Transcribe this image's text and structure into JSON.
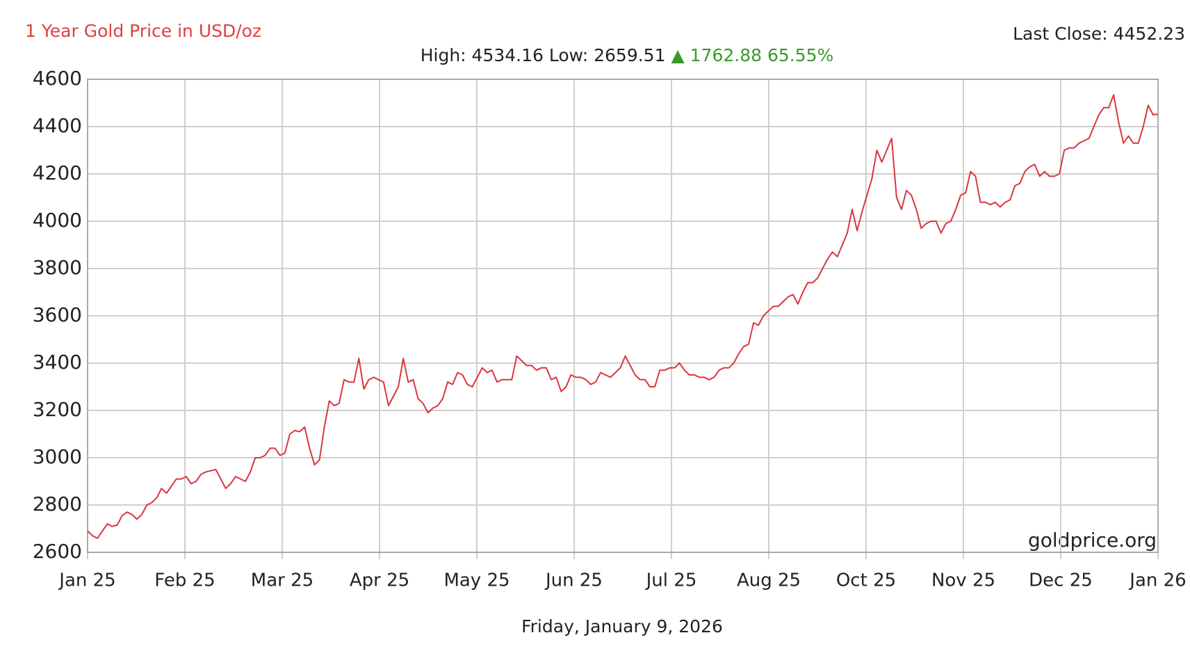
{
  "chart_data": {
    "type": "line",
    "title": "1 Year Gold Price in USD/oz",
    "last_close": "Last Close: 4452.23",
    "stats": "High: 4534.16 Low: 2659.51",
    "change": "▲ 1762.88 65.55%",
    "watermark": "goldprice.org",
    "date": "Friday, January 9, 2026",
    "xticks": [
      "Jan 25",
      "Feb 25",
      "Mar 25",
      "Apr 25",
      "May 25",
      "Jun 25",
      "Jul 25",
      "Aug 25",
      "Oct 25",
      "Nov 25",
      "Dec 25",
      "Jan 26"
    ],
    "ylim": [
      2600,
      4600
    ],
    "yticks": [
      2600,
      2800,
      3000,
      3200,
      3400,
      3600,
      3800,
      4000,
      4200,
      4400,
      4600
    ],
    "grid": true,
    "series": [
      {
        "color": "#d9363e",
        "values": [
          2690,
          2670,
          2659.51,
          2690,
          2720,
          2710,
          2715,
          2755,
          2770,
          2760,
          2740,
          2760,
          2800,
          2810,
          2830,
          2870,
          2850,
          2880,
          2910,
          2910,
          2920,
          2890,
          2900,
          2930,
          2940,
          2945,
          2950,
          2910,
          2870,
          2890,
          2920,
          2910,
          2900,
          2940,
          3000,
          3000,
          3010,
          3040,
          3040,
          3010,
          3020,
          3100,
          3115,
          3110,
          3130,
          3040,
          2970,
          2990,
          3130,
          3240,
          3220,
          3230,
          3330,
          3320,
          3320,
          3420,
          3290,
          3330,
          3340,
          3330,
          3320,
          3220,
          3260,
          3300,
          3420,
          3320,
          3330,
          3250,
          3230,
          3190,
          3210,
          3220,
          3250,
          3320,
          3310,
          3360,
          3350,
          3310,
          3300,
          3340,
          3380,
          3360,
          3370,
          3320,
          3330,
          3330,
          3330,
          3430,
          3410,
          3390,
          3390,
          3370,
          3380,
          3380,
          3330,
          3340,
          3280,
          3300,
          3350,
          3340,
          3340,
          3330,
          3310,
          3320,
          3360,
          3350,
          3340,
          3360,
          3380,
          3430,
          3390,
          3350,
          3330,
          3330,
          3300,
          3300,
          3370,
          3370,
          3380,
          3380,
          3400,
          3370,
          3350,
          3350,
          3340,
          3340,
          3330,
          3340,
          3370,
          3380,
          3380,
          3400,
          3440,
          3470,
          3480,
          3570,
          3560,
          3600,
          3620,
          3640,
          3640,
          3660,
          3680,
          3690,
          3650,
          3700,
          3740,
          3740,
          3760,
          3800,
          3840,
          3870,
          3850,
          3900,
          3950,
          4050,
          3960,
          4040,
          4110,
          4180,
          4300,
          4250,
          4300,
          4350,
          4100,
          4050,
          4130,
          4110,
          4050,
          3970,
          3990,
          4000,
          4000,
          3950,
          3990,
          4000,
          4050,
          4110,
          4120,
          4210,
          4190,
          4080,
          4080,
          4070,
          4080,
          4060,
          4080,
          4090,
          4150,
          4160,
          4210,
          4230,
          4240,
          4190,
          4210,
          4190,
          4190,
          4200,
          4300,
          4310,
          4310,
          4330,
          4340,
          4350,
          4400,
          4450,
          4480,
          4480,
          4534.16,
          4420,
          4330,
          4360,
          4330,
          4330,
          4400,
          4490,
          4450,
          4452.23
        ]
      }
    ]
  }
}
